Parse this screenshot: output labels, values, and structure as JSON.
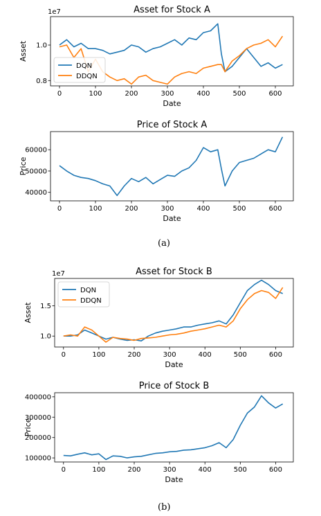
{
  "figure_captions": [
    "(a)",
    "(b)"
  ],
  "chart_data": [
    {
      "type": "line",
      "title": "Asset for Stock A",
      "xlabel": "Date",
      "ylabel": "Asset",
      "offset_text": "1e7",
      "xlim": [
        -25,
        650
      ],
      "ylim": [
        0.77,
        1.16
      ],
      "xticks": [
        0,
        100,
        200,
        300,
        400,
        500,
        600
      ],
      "yticks": [
        0.8,
        1.0
      ],
      "ytick_labels": [
        "0.8",
        "1.0"
      ],
      "legend": "bottom-left",
      "x": [
        0,
        20,
        40,
        60,
        80,
        100,
        120,
        140,
        160,
        180,
        200,
        220,
        240,
        260,
        280,
        300,
        320,
        340,
        360,
        380,
        400,
        420,
        440,
        450,
        460,
        480,
        500,
        520,
        540,
        560,
        580,
        600,
        620
      ],
      "series": [
        {
          "name": "DQN",
          "color": "#1f77b4",
          "values": [
            1.0,
            1.03,
            0.99,
            1.01,
            0.98,
            0.98,
            0.97,
            0.95,
            0.96,
            0.97,
            1.0,
            0.99,
            0.96,
            0.98,
            0.99,
            1.01,
            1.03,
            1.0,
            1.04,
            1.03,
            1.07,
            1.08,
            1.12,
            0.95,
            0.85,
            0.88,
            0.93,
            0.98,
            0.93,
            0.88,
            0.9,
            0.87,
            0.89
          ]
        },
        {
          "name": "DDQN",
          "color": "#ff7f0e",
          "values": [
            0.99,
            1.0,
            0.93,
            0.98,
            0.85,
            0.92,
            0.85,
            0.82,
            0.8,
            0.81,
            0.78,
            0.82,
            0.83,
            0.8,
            0.79,
            0.78,
            0.82,
            0.84,
            0.85,
            0.84,
            0.87,
            0.88,
            0.89,
            0.89,
            0.85,
            0.91,
            0.94,
            0.98,
            1.0,
            1.01,
            1.03,
            0.99,
            1.05
          ]
        }
      ]
    },
    {
      "type": "line",
      "title": "Price of Stock A",
      "xlabel": "Date",
      "ylabel": "Price",
      "xlim": [
        -25,
        650
      ],
      "ylim": [
        36000,
        68500
      ],
      "xticks": [
        0,
        100,
        200,
        300,
        400,
        500,
        600
      ],
      "yticks": [
        40000,
        50000,
        60000
      ],
      "ytick_labels": [
        "40000",
        "50000",
        "60000"
      ],
      "x": [
        0,
        20,
        40,
        60,
        80,
        100,
        120,
        140,
        160,
        180,
        200,
        220,
        240,
        260,
        280,
        300,
        320,
        340,
        360,
        380,
        400,
        420,
        440,
        450,
        460,
        480,
        500,
        520,
        540,
        560,
        580,
        600,
        620
      ],
      "series": [
        {
          "color": "#1f77b4",
          "values": [
            52500,
            50000,
            48000,
            47000,
            46500,
            45500,
            44000,
            43000,
            38500,
            43000,
            46500,
            45000,
            47000,
            44000,
            46000,
            48000,
            47500,
            50000,
            51500,
            55000,
            61000,
            59000,
            60000,
            51000,
            43000,
            50000,
            54000,
            55000,
            56000,
            58000,
            60000,
            59000,
            66000
          ]
        }
      ]
    },
    {
      "type": "line",
      "title": "Asset for Stock B",
      "xlabel": "Date",
      "ylabel": "Asset",
      "offset_text": "1e7",
      "xlim": [
        -25,
        650
      ],
      "ylim": [
        0.82,
        1.95
      ],
      "xticks": [
        0,
        100,
        200,
        300,
        400,
        500,
        600
      ],
      "yticks": [
        1.0,
        1.5
      ],
      "ytick_labels": [
        "1.0",
        "1.5"
      ],
      "legend": "top-left",
      "x": [
        0,
        20,
        40,
        60,
        80,
        100,
        120,
        140,
        160,
        180,
        200,
        220,
        240,
        260,
        280,
        300,
        320,
        340,
        360,
        380,
        400,
        420,
        440,
        460,
        480,
        500,
        520,
        540,
        560,
        580,
        600,
        620
      ],
      "series": [
        {
          "name": "DQN",
          "color": "#1f77b4",
          "values": [
            1.0,
            1.0,
            1.02,
            1.1,
            1.05,
            1.0,
            0.95,
            0.98,
            0.95,
            0.93,
            0.94,
            0.92,
            1.0,
            1.05,
            1.08,
            1.1,
            1.12,
            1.15,
            1.15,
            1.18,
            1.2,
            1.22,
            1.25,
            1.2,
            1.35,
            1.55,
            1.75,
            1.85,
            1.92,
            1.85,
            1.75,
            1.7
          ]
        },
        {
          "name": "DDQN",
          "color": "#ff7f0e",
          "values": [
            1.0,
            1.02,
            1.0,
            1.15,
            1.1,
            1.0,
            0.9,
            0.98,
            0.96,
            0.95,
            0.93,
            0.96,
            0.97,
            0.98,
            1.0,
            1.02,
            1.03,
            1.05,
            1.08,
            1.1,
            1.12,
            1.15,
            1.18,
            1.15,
            1.25,
            1.45,
            1.6,
            1.7,
            1.75,
            1.72,
            1.62,
            1.8
          ]
        }
      ]
    },
    {
      "type": "line",
      "title": "Price of Stock B",
      "xlabel": "Date",
      "ylabel": "Price",
      "xlim": [
        -25,
        650
      ],
      "ylim": [
        80000,
        420000
      ],
      "xticks": [
        0,
        100,
        200,
        300,
        400,
        500,
        600
      ],
      "yticks": [
        100000,
        200000,
        300000,
        400000
      ],
      "ytick_labels": [
        "100000",
        "200000",
        "300000",
        "400000"
      ],
      "x": [
        0,
        20,
        40,
        60,
        80,
        100,
        120,
        140,
        160,
        180,
        200,
        220,
        240,
        260,
        280,
        300,
        320,
        340,
        360,
        380,
        400,
        420,
        440,
        460,
        480,
        500,
        520,
        540,
        560,
        580,
        600,
        620
      ],
      "series": [
        {
          "color": "#1f77b4",
          "values": [
            112000,
            110000,
            118000,
            125000,
            115000,
            120000,
            92000,
            110000,
            108000,
            100000,
            105000,
            108000,
            115000,
            122000,
            125000,
            130000,
            132000,
            138000,
            140000,
            145000,
            150000,
            160000,
            175000,
            150000,
            190000,
            260000,
            320000,
            350000,
            405000,
            370000,
            345000,
            365000
          ]
        }
      ]
    }
  ]
}
